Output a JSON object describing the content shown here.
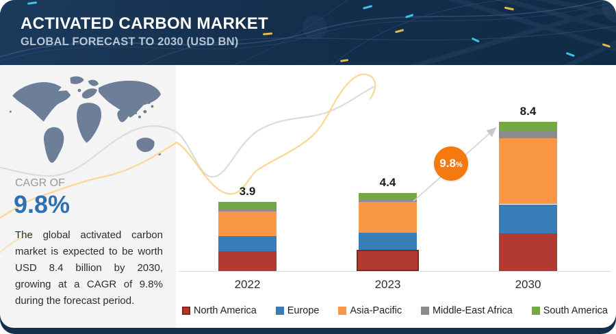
{
  "header": {
    "title": "ACTIVATED CARBON MARKET",
    "subtitle": "GLOBAL FORECAST TO 2030 (USD BN)"
  },
  "sidebar": {
    "cagr_label": "CAGR OF",
    "cagr_value": "9.8%",
    "description": "The global activated carbon market is expected to be worth USD 8.4 billion by 2030, growing at a CAGR of 9.8% during the forecast period."
  },
  "badge": {
    "value": "9.8",
    "percent_sign": "%"
  },
  "chart_data": {
    "type": "bar",
    "stacked": true,
    "title": "Activated Carbon Market",
    "subtitle": "Global Forecast to 2030 (USD BN)",
    "unit": "USD BN",
    "categories": [
      "2022",
      "2023",
      "2030"
    ],
    "totals": [
      3.9,
      4.4,
      8.4
    ],
    "series": [
      {
        "name": "North America",
        "color": "#b33a32",
        "values": [
          1.1,
          1.2,
          2.1
        ]
      },
      {
        "name": "Europe",
        "color": "#377db7",
        "values": [
          0.85,
          0.95,
          1.65
        ]
      },
      {
        "name": "Asia-Pacific",
        "color": "#f99746",
        "values": [
          1.4,
          1.75,
          3.7
        ]
      },
      {
        "name": "Middle-East Africa",
        "color": "#8c8c8c",
        "values": [
          0.15,
          0.15,
          0.4
        ]
      },
      {
        "name": "South America",
        "color": "#74a847",
        "values": [
          0.4,
          0.35,
          0.55
        ]
      }
    ],
    "ylim": [
      0,
      9
    ],
    "grid": false,
    "legend_position": "bottom",
    "cagr_annotation": "9.8%",
    "highlight": {
      "category": "2023",
      "series": "North America",
      "border_color": "#8c211c"
    }
  },
  "colors": {
    "header_navy": "#14304d",
    "panel_bg": "#f4f4f5",
    "accent_blue": "#2e70b2",
    "badge_orange": "#f5790e",
    "map_gray": "#6d7e99",
    "axis_gray": "#dcdcdc",
    "wave_yellow": "#fbd58b",
    "wave_gray": "#dadada"
  }
}
